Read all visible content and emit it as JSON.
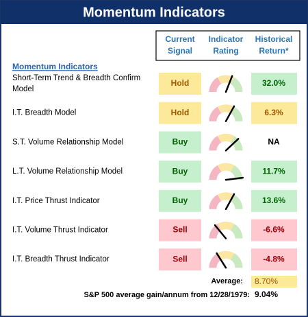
{
  "header": {
    "title": "Momentum Indicators"
  },
  "table": {
    "columns": [
      [
        "Current",
        "Signal"
      ],
      [
        "Indicator",
        "Rating"
      ],
      [
        "Historical",
        "Return*"
      ]
    ],
    "section": "Momentum Indicators",
    "rows": [
      {
        "name": [
          "Short-Term Trend & Breadth Confirm",
          "Model"
        ],
        "signal": "Hold",
        "rating": 62,
        "return": "32.0%",
        "return_color": "green"
      },
      {
        "name": [
          "I.T. Breadth Model"
        ],
        "signal": "Hold",
        "rating": 66,
        "return": "6.3%",
        "return_color": "yellow"
      },
      {
        "name": [
          "S.T. Volume Relationship Model"
        ],
        "signal": "Buy",
        "rating": 76,
        "return": "NA",
        "return_color": "none"
      },
      {
        "name": [
          "L.T. Volume Relationship Model"
        ],
        "signal": "Buy",
        "rating": 96,
        "return": "11.7%",
        "return_color": "green"
      },
      {
        "name": [
          "I.T. Price Thrust Indicator"
        ],
        "signal": "Buy",
        "rating": 66,
        "return": "13.6%",
        "return_color": "green"
      },
      {
        "name": [
          "I.T. Volume Thrust Indicator"
        ],
        "signal": "Sell",
        "rating": 28,
        "return": "-6.6%",
        "return_color": "red"
      },
      {
        "name": [
          "I.T. Breadth Thrust Indicator"
        ],
        "signal": "Sell",
        "rating": 32,
        "return": "-4.8%",
        "return_color": "red"
      }
    ],
    "average_label": "Average:",
    "average": "8.70%",
    "benchmark_label": "S&P 500 average gain/annum from 12/28/1979:",
    "benchmark": "9.04%"
  }
}
